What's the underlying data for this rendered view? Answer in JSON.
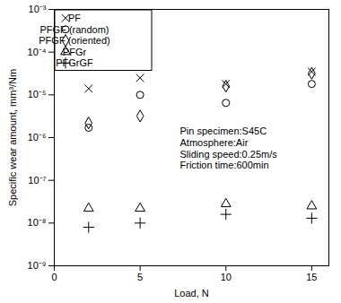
{
  "chart_data": {
    "type": "scatter",
    "x_label": "Load, N",
    "y_label": "Specific wear amount, mm³/Nm",
    "x": [
      2,
      5,
      10,
      15
    ],
    "series": [
      {
        "name": "PF",
        "color": "#000000",
        "marker": "times",
        "values": [
          1.4e-05,
          2.5e-05,
          1.8e-05,
          3.5e-05
        ]
      },
      {
        "name": "PFGF (random)",
        "color": "#000000",
        "marker": "circle",
        "values": [
          1.7e-06,
          1e-05,
          6.5e-06,
          1.8e-05
        ]
      },
      {
        "name": "PFGF (oriented)",
        "color": "#000000",
        "marker": "diamond",
        "values": [
          2.2e-06,
          3.2e-06,
          1.6e-05,
          3.2e-05
        ]
      },
      {
        "name": "PFGr",
        "color": "#000000",
        "marker": "triangle",
        "values": [
          2.2e-08,
          2.2e-08,
          2.8e-08,
          2.5e-08
        ]
      },
      {
        "name": "PFGrGF",
        "color": "#000000",
        "marker": "plus",
        "values": [
          8e-09,
          1e-08,
          1.6e-08,
          1.3e-08
        ]
      }
    ],
    "annotations": [
      "Pin specimen:S45C",
      "Atmosphere:Air",
      "Sliding speed:0.25m/s",
      "Friction time:600min"
    ],
    "xlim": [
      0,
      16
    ],
    "xticks": [
      0,
      5,
      10,
      15
    ],
    "ylim": [
      1e-09,
      0.001
    ],
    "yticks": [
      {
        "value": 1e-09,
        "label": "10⁻⁹"
      },
      {
        "value": 1e-08,
        "label": "10⁻⁸"
      },
      {
        "value": 1e-07,
        "label": "10⁻⁷"
      },
      {
        "value": 1e-06,
        "label": "10⁻⁶"
      },
      {
        "value": 1e-05,
        "label": "10⁻⁵"
      },
      {
        "value": 0.0001,
        "label": "10⁻⁴"
      },
      {
        "value": 0.001,
        "label": "10⁻³"
      }
    ],
    "log": "y",
    "grid": false,
    "legend": "top-left"
  }
}
